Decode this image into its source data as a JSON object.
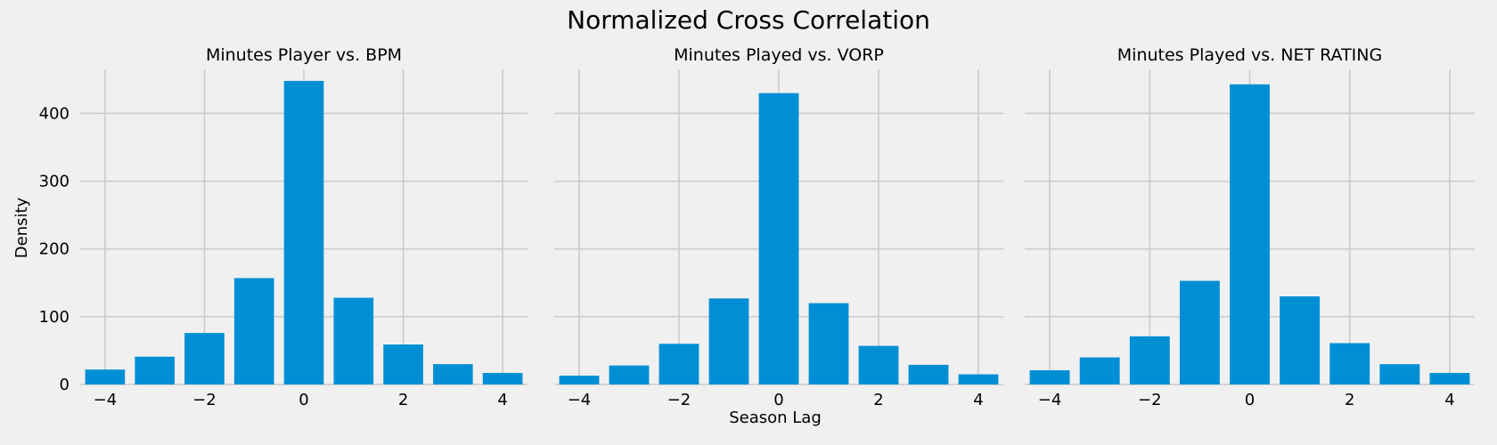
{
  "figure": {
    "title": "Normalized Cross Correlation",
    "xlabel": "Season Lag",
    "ylabel": "Density"
  },
  "colors": {
    "background": "#f0f0f0",
    "bar": "#008fd5",
    "grid": "#cbcbcb"
  },
  "chart_data": [
    {
      "type": "bar",
      "title": "Minutes Player vs. BPM",
      "x": [
        -4,
        -3,
        -2,
        -1,
        0,
        1,
        2,
        3,
        4
      ],
      "values": [
        22,
        41,
        76,
        157,
        448,
        128,
        59,
        30,
        17
      ],
      "xlim": [
        -4.5,
        4.5
      ],
      "ylim": [
        0,
        465
      ],
      "xticks": [
        -4,
        -2,
        0,
        2,
        4
      ],
      "xtick_labels": [
        "−4",
        "−2",
        "0",
        "2",
        "4"
      ],
      "yticks": [
        0,
        100,
        200,
        300,
        400
      ],
      "ytick_labels": [
        "0",
        "100",
        "200",
        "300",
        "400"
      ],
      "grid": true
    },
    {
      "type": "bar",
      "title": "Minutes Played vs. VORP",
      "x": [
        -4,
        -3,
        -2,
        -1,
        0,
        1,
        2,
        3,
        4
      ],
      "values": [
        13,
        28,
        60,
        127,
        430,
        120,
        57,
        29,
        15
      ],
      "xlim": [
        -4.5,
        4.5
      ],
      "ylim": [
        0,
        465
      ],
      "xticks": [
        -4,
        -2,
        0,
        2,
        4
      ],
      "xtick_labels": [
        "−4",
        "−2",
        "0",
        "2",
        "4"
      ],
      "yticks": [
        0,
        100,
        200,
        300,
        400
      ],
      "ytick_labels": [],
      "grid": true
    },
    {
      "type": "bar",
      "title": "Minutes Played vs. NET RATING",
      "x": [
        -4,
        -3,
        -2,
        -1,
        0,
        1,
        2,
        3,
        4
      ],
      "values": [
        21,
        40,
        71,
        153,
        443,
        130,
        61,
        30,
        17
      ],
      "xlim": [
        -4.5,
        4.5
      ],
      "ylim": [
        0,
        465
      ],
      "xticks": [
        -4,
        -2,
        0,
        2,
        4
      ],
      "xtick_labels": [
        "−4",
        "−2",
        "0",
        "2",
        "4"
      ],
      "yticks": [
        0,
        100,
        200,
        300,
        400
      ],
      "ytick_labels": [],
      "grid": true
    }
  ]
}
